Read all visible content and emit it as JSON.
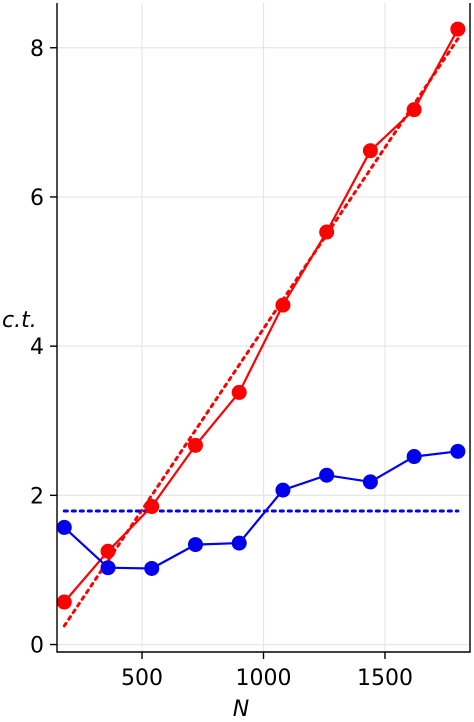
{
  "chart_data": {
    "type": "line",
    "xlabel": "N",
    "ylabel": "c.t.",
    "xlim": [
      150,
      1850
    ],
    "ylim": [
      -0.1,
      8.6
    ],
    "x_ticks": [
      500,
      1000,
      1500
    ],
    "y_ticks": [
      0,
      2,
      4,
      6,
      8
    ],
    "grid": true,
    "series": [
      {
        "color": "#ff0000",
        "x": [
          180,
          360,
          540,
          720,
          900,
          1080,
          1260,
          1440,
          1620,
          1800
        ],
        "values": [
          0.57,
          1.25,
          1.85,
          2.67,
          3.38,
          4.55,
          5.53,
          6.62,
          7.17,
          8.25
        ]
      },
      {
        "color": "#0000ee",
        "x": [
          180,
          360,
          540,
          720,
          900,
          1080,
          1260,
          1440,
          1620,
          1800
        ],
        "values": [
          1.57,
          1.03,
          1.02,
          1.34,
          1.36,
          2.07,
          2.27,
          2.18,
          2.52,
          2.59
        ]
      }
    ],
    "fits": [
      {
        "color": "#ff0000",
        "style": "dotted",
        "x": [
          180,
          1800
        ],
        "values": [
          0.25,
          8.12
        ]
      },
      {
        "color": "#0000ee",
        "style": "dotted",
        "x": [
          180,
          1800
        ],
        "values": [
          1.79,
          1.79
        ]
      }
    ]
  }
}
